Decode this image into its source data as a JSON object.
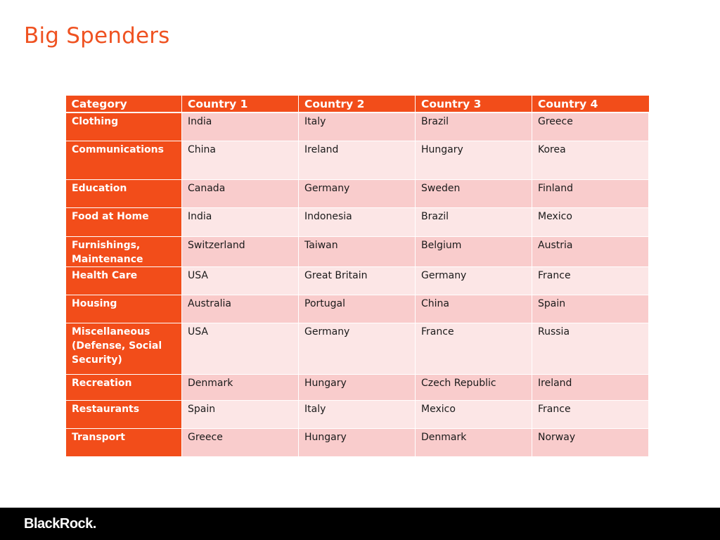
{
  "title": "Big Spenders",
  "table": {
    "headers": [
      "Category",
      "Country 1",
      "Country 2",
      "Country 3",
      "Country 4"
    ],
    "rows": [
      {
        "category": "Clothing",
        "countries": [
          "India",
          "Italy",
          "Brazil",
          "Greece"
        ]
      },
      {
        "category": "Communications",
        "countries": [
          "China",
          "Ireland",
          "Hungary",
          "Korea"
        ]
      },
      {
        "category": "Education",
        "countries": [
          "Canada",
          "Germany",
          "Sweden",
          "Finland"
        ]
      },
      {
        "category": "Food at Home",
        "countries": [
          "India",
          "Indonesia",
          "Brazil",
          "Mexico"
        ]
      },
      {
        "category": "Furnishings, Maintenance",
        "countries": [
          "Switzerland",
          "Taiwan",
          "Belgium",
          "Austria"
        ]
      },
      {
        "category": "Health Care",
        "countries": [
          "USA",
          "Great Britain",
          "Germany",
          "France"
        ]
      },
      {
        "category": "Housing",
        "countries": [
          "Australia",
          "Portugal",
          "China",
          "Spain"
        ]
      },
      {
        "category": "Miscellaneous (Defense, Social Security)",
        "countries": [
          "USA",
          "Germany",
          "France",
          "Russia"
        ]
      },
      {
        "category": "Recreation",
        "countries": [
          "Denmark",
          "Hungary",
          "Czech Republic",
          "Ireland"
        ]
      },
      {
        "category": "Restaurants",
        "countries": [
          "Spain",
          "Italy",
          "Mexico",
          "France"
        ]
      },
      {
        "category": "Transport",
        "countries": [
          "Greece",
          "Hungary",
          "Denmark",
          "Norway"
        ]
      }
    ]
  },
  "footer": {
    "logo": "BlackRock."
  },
  "colors": {
    "accent": "#f24d1a",
    "row_dark": "#f9cccc",
    "row_light": "#fce6e6",
    "footer": "#000000"
  }
}
